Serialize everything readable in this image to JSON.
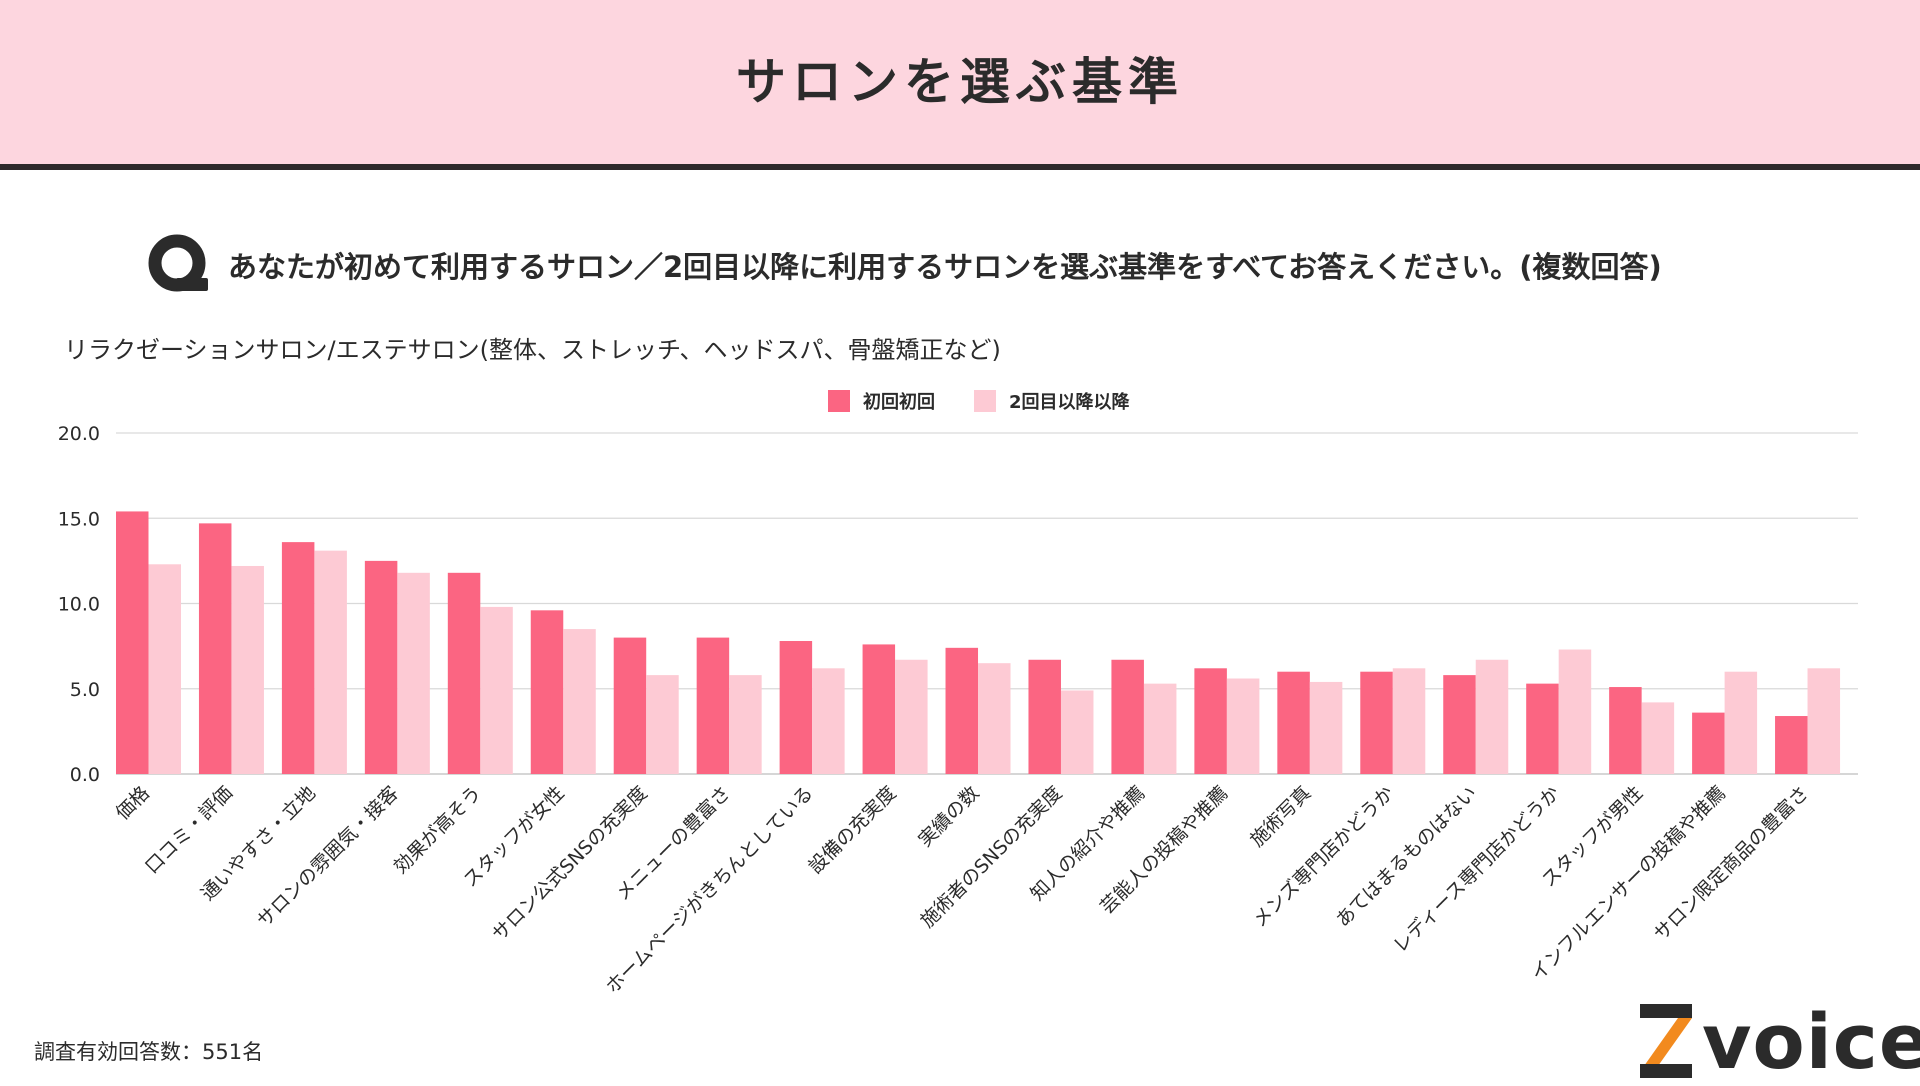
{
  "header": {
    "title": "サロンを選ぶ基準"
  },
  "question": {
    "text": "あなたが初めて利用するサロン／2回目以降に利用するサロンを選ぶ基準をすべてお答えください。(複数回答)"
  },
  "subtitle": "リラクゼーションサロン/エステサロン(整体、ストレッチ、ヘッドスパ、骨盤矯正など)",
  "footnote": "調査有効回答数：551名",
  "logo": {
    "text": "voice"
  },
  "colors": {
    "first": "#fb6582",
    "second": "#fdcad4",
    "header_bg": "#fdd6df",
    "text": "#2b2b2b",
    "grid": "#d9d9d9",
    "logo_orange": "#f28a1e"
  },
  "chart_data": {
    "type": "bar",
    "title": "",
    "xlabel": "",
    "ylabel": "",
    "ylim": [
      0,
      20
    ],
    "yticks": [
      "0.0",
      "5.0",
      "10.0",
      "15.0",
      "20.0"
    ],
    "legend_position": "top-center",
    "grid": true,
    "categories": [
      "価格",
      "口コミ・評価",
      "通いやすさ・立地",
      "サロンの雰囲気・接客",
      "効果が高そう",
      "スタッフが女性",
      "サロン公式SNSの充実度",
      "メニューの豊富さ",
      "ホームページがきちんとしている",
      "設備の充実度",
      "実績の数",
      "施術者のSNSの充実度",
      "知人の紹介や推薦",
      "芸能人の投稿や推薦",
      "施術写真",
      "メンズ専門店かどうか",
      "あてはまるものはない",
      "レディース専門店かどうか",
      "スタッフが男性",
      "インフルエンサーの投稿や推薦",
      "サロン限定商品の豊富さ"
    ],
    "series": [
      {
        "name": "初回初回",
        "values": [
          15.4,
          14.7,
          13.6,
          12.5,
          11.8,
          9.6,
          8.0,
          8.0,
          7.8,
          7.6,
          7.4,
          6.7,
          6.7,
          6.2,
          6.0,
          6.0,
          5.8,
          5.3,
          5.1,
          3.6,
          3.4
        ]
      },
      {
        "name": "2回目以降以降",
        "values": [
          12.3,
          12.2,
          13.1,
          11.8,
          9.8,
          8.5,
          5.8,
          5.8,
          6.2,
          6.7,
          6.5,
          4.9,
          5.3,
          5.6,
          5.4,
          6.2,
          6.7,
          7.3,
          4.2,
          6.0,
          6.2
        ]
      }
    ]
  }
}
